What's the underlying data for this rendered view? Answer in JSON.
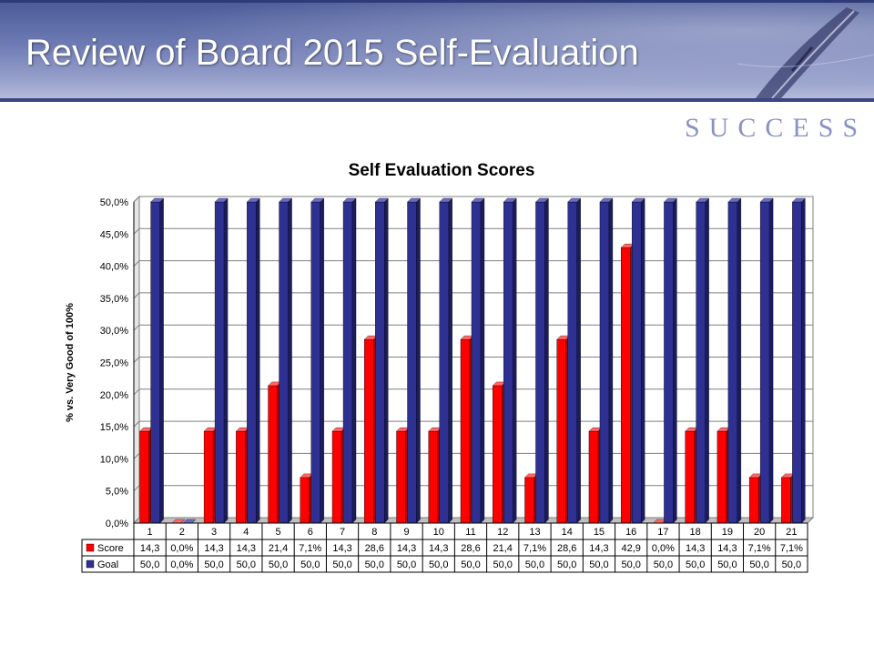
{
  "slide": {
    "title": "Review of Board 2015 Self-Evaluation",
    "logo_text": "SUCCESS"
  },
  "colors": {
    "header": "#5b68a6",
    "score": "#ff0000",
    "goal": "#2e3192",
    "logo": "#8a91c4"
  },
  "chart_data": {
    "type": "bar",
    "title": "Self Evaluation Scores",
    "ylabel": "% vs. Very Good of 100%",
    "xlabel": "",
    "ylim": [
      0,
      50
    ],
    "y_ticks": [
      "0,0%",
      "5,0%",
      "10,0%",
      "15,0%",
      "20,0%",
      "25,0%",
      "30,0%",
      "35,0%",
      "40,0%",
      "45,0%",
      "50,0%"
    ],
    "categories": [
      "1",
      "2",
      "3",
      "4",
      "5",
      "6",
      "7",
      "8",
      "9",
      "10",
      "11",
      "12",
      "13",
      "14",
      "15",
      "16",
      "17",
      "18",
      "19",
      "20",
      "21"
    ],
    "series": [
      {
        "name": "Score",
        "color": "#ff0000",
        "values": [
          14.3,
          0.0,
          14.3,
          14.3,
          21.4,
          7.1,
          14.3,
          28.6,
          14.3,
          14.3,
          28.6,
          21.4,
          7.1,
          28.6,
          14.3,
          42.9,
          0.0,
          14.3,
          14.3,
          7.1,
          7.1
        ],
        "labels": [
          "14,3",
          "0,0%",
          "14,3",
          "14,3",
          "21,4",
          "7,1%",
          "14,3",
          "28,6",
          "14,3",
          "14,3",
          "28,6",
          "21,4",
          "7,1%",
          "28,6",
          "14,3",
          "42,9",
          "0,0%",
          "14,3",
          "14,3",
          "7,1%",
          "7,1%"
        ]
      },
      {
        "name": "Goal",
        "color": "#2e3192",
        "values": [
          50,
          0,
          50,
          50,
          50,
          50,
          50,
          50,
          50,
          50,
          50,
          50,
          50,
          50,
          50,
          50,
          50,
          50,
          50,
          50,
          50
        ],
        "labels": [
          "50,0",
          "0,0%",
          "50,0",
          "50,0",
          "50,0",
          "50,0",
          "50,0",
          "50,0",
          "50,0",
          "50,0",
          "50,0",
          "50,0",
          "50,0",
          "50,0",
          "50,0",
          "50,0",
          "50,0",
          "50,0",
          "50,0",
          "50,0",
          "50,0"
        ]
      }
    ],
    "grid": true,
    "legend": "data-table"
  }
}
